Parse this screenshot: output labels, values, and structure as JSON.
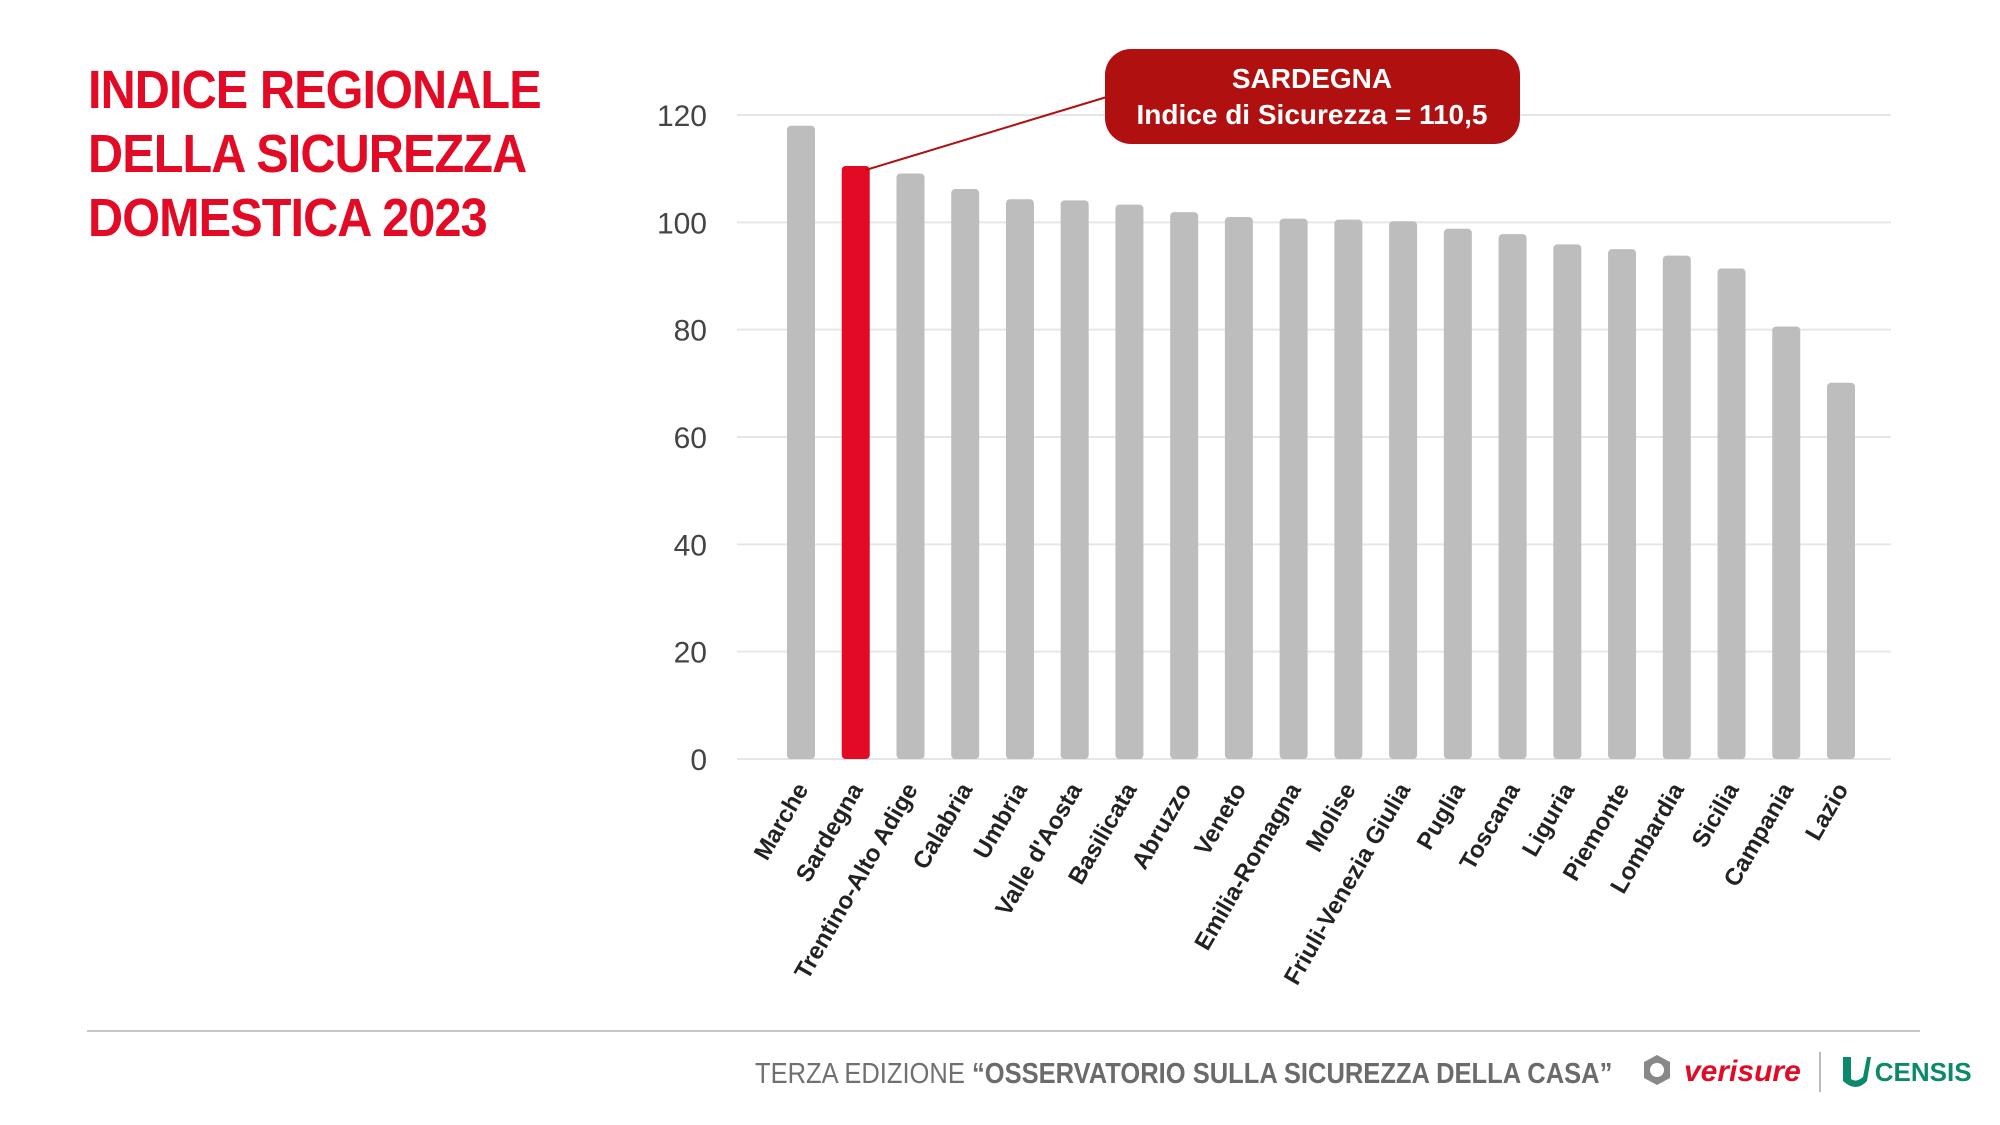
{
  "title": [
    "INDICE REGIONALE",
    "DELLA SICUREZZA",
    "DOMESTICA 2023"
  ],
  "footer": {
    "prefix": "TERZA EDIZIONE",
    "quote": "“OSSERVATORIO SULLA SICUREZZA DELLA CASA”",
    "logo1": "verisure",
    "logo2": "CENSIS"
  },
  "colors": {
    "accent": "#e30a25",
    "bar": "#bdbdbd",
    "callout": "#b01010",
    "grid": "#e6e6e6"
  },
  "chart_data": {
    "type": "bar",
    "categories": [
      "Marche",
      "Sardegna",
      "Trentino-Alto Adige",
      "Calabria",
      "Umbria",
      "Valle d'Aosta",
      "Basilicata",
      "Abruzzo",
      "Veneto",
      "Emilia-Romagna",
      "Molise",
      "Friuli-Venezia Giulia",
      "Puglia",
      "Toscana",
      "Liguria",
      "Piemonte",
      "Lombardia",
      "Sicilia",
      "Campania",
      "Lazio"
    ],
    "values": [
      118,
      110.5,
      109.1,
      106.2,
      104.3,
      104.1,
      103.3,
      101.9,
      101.0,
      100.7,
      100.5,
      100.2,
      98.8,
      97.8,
      95.9,
      95.0,
      93.8,
      91.4,
      80.6,
      70.1
    ],
    "highlight": "Sardegna",
    "yticks": [
      0,
      20,
      40,
      60,
      80,
      100,
      120
    ],
    "ylim": [
      0,
      120
    ],
    "grid": true,
    "annotation": {
      "line1": "SARDEGNA",
      "line2": "Indice di Sicurezza = 110,5"
    }
  }
}
